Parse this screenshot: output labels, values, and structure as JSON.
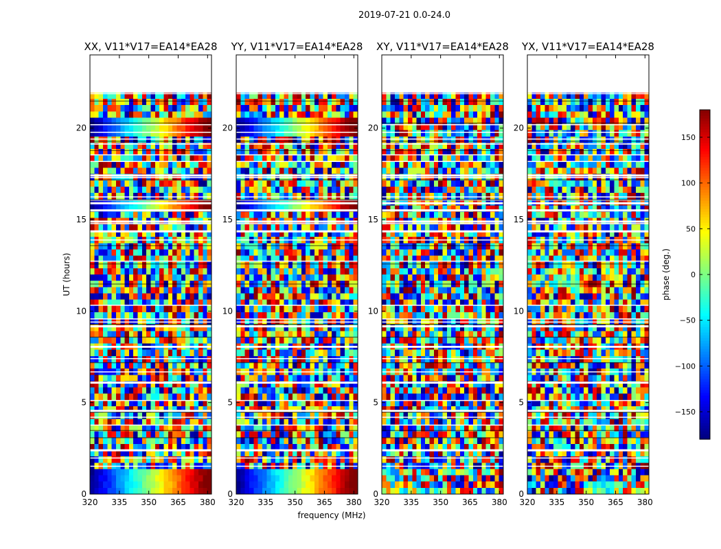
{
  "figure": {
    "suptitle": "2019-07-21 0.0-24.0"
  },
  "chart_data": {
    "type": "heatmap",
    "description": "Visibility phase vs frequency and UT for four polarization products",
    "xlabel": "frequency (MHz)",
    "ylabel": "UT (hours)",
    "xlim": [
      320,
      382
    ],
    "ylim": [
      0,
      24
    ],
    "xticks": [
      320,
      335,
      350,
      365,
      380
    ],
    "yticks": [
      0,
      5,
      10,
      15,
      20
    ],
    "panels": [
      {
        "title": "XX, V11*V17=EA14*EA28",
        "pol": "XX",
        "coherent_bands": true
      },
      {
        "title": "YY, V11*V17=EA14*EA28",
        "pol": "YY",
        "coherent_bands": true
      },
      {
        "title": "XY, V11*V17=EA14*EA28",
        "pol": "XY",
        "coherent_bands": false
      },
      {
        "title": "YX, V11*V17=EA14*EA28",
        "pol": "YX",
        "coherent_bands": false
      }
    ],
    "flagged_ut_ranges": [
      [
        22.0,
        24.0
      ]
    ],
    "colorbar": {
      "label": "phase (deg.)",
      "range": [
        -180,
        180
      ],
      "ticks": [
        -150,
        -100,
        -50,
        0,
        50,
        100,
        150
      ],
      "tick_labels": [
        "−150",
        "−100",
        "−50",
        "0",
        "50",
        "100",
        "150"
      ],
      "colormap": "jet",
      "colors": [
        "#00007f",
        "#0000ff",
        "#007fff",
        "#00ffff",
        "#7fff7f",
        "#ffff00",
        "#ff7f00",
        "#ff0000",
        "#7f0000"
      ]
    }
  }
}
